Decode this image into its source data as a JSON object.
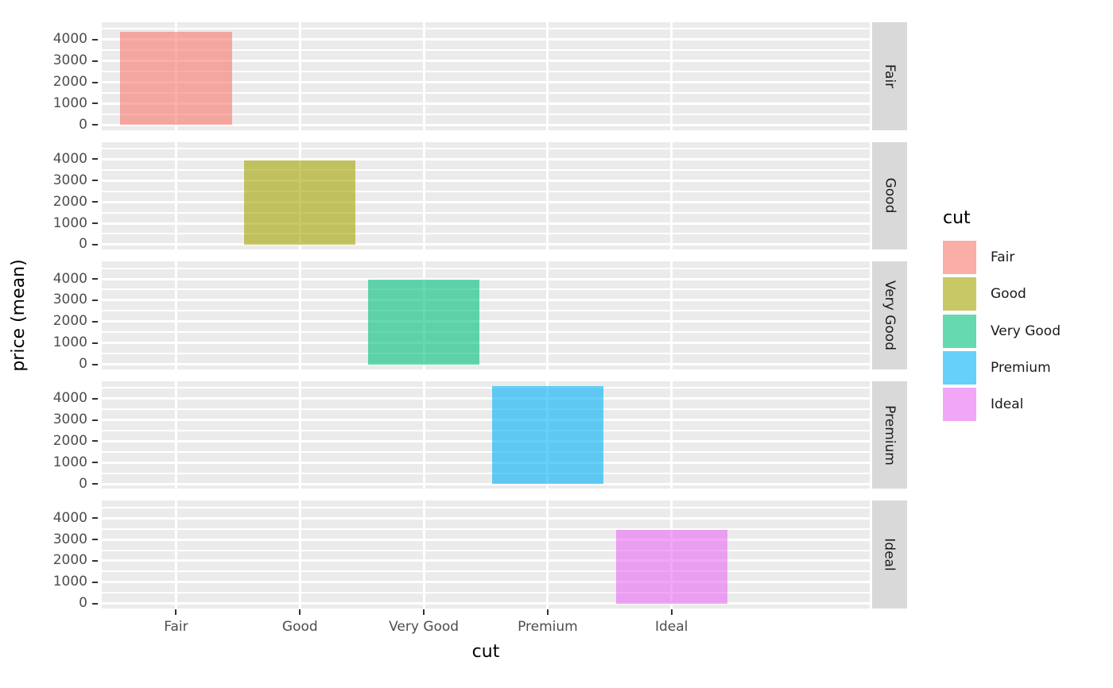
{
  "chart_data": {
    "type": "bar",
    "title": "",
    "xlabel": "cut",
    "ylabel": "price (mean)",
    "categories": [
      "Fair",
      "Good",
      "Very Good",
      "Premium",
      "Ideal"
    ],
    "values": [
      4358.76,
      3928.86,
      3981.76,
      4584.26,
      3457.54
    ],
    "facets": {
      "variable": "cut",
      "labels": [
        "Fair",
        "Good",
        "Very Good",
        "Premium",
        "Ideal"
      ],
      "strip_position": "right",
      "layout": "rows"
    },
    "yticks": [
      0,
      1000,
      2000,
      3000,
      4000
    ],
    "ytick_labels": [
      "0",
      "1000",
      "2000",
      "3000",
      "4000"
    ],
    "y_minor_step": 500,
    "ylim": [
      0,
      4584.26
    ],
    "y_expansion_mult": 0.05,
    "grid": true,
    "legend": {
      "title": "cut",
      "position": "right",
      "entries": [
        {
          "label": "Fair",
          "color": "#F8766D"
        },
        {
          "label": "Good",
          "color": "#A3A500"
        },
        {
          "label": "Very Good",
          "color": "#00BF7D"
        },
        {
          "label": "Premium",
          "color": "#00B0F6"
        },
        {
          "label": "Ideal",
          "color": "#E76BF3"
        }
      ]
    },
    "bar_alpha": 0.6,
    "colors": {
      "panel_bg": "#EBEBEB",
      "strip_bg": "#D9D9D9",
      "grid": "#FFFFFF",
      "axis_text": "#4D4D4D",
      "tick_mark": "#333333",
      "title_text": "#000000"
    }
  }
}
